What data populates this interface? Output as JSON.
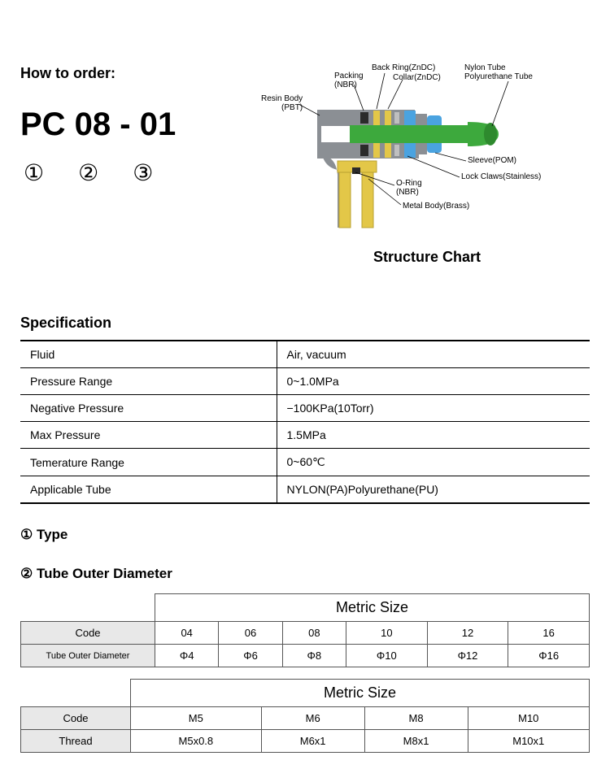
{
  "header": {
    "how_to_order": "How to order:",
    "part_number": "PC 08 - 01",
    "num1": "①",
    "num2": "②",
    "num3": "③"
  },
  "structure": {
    "caption": "Structure Chart",
    "labels": {
      "resin_body": "Resin Body\n(PBT)",
      "packing": "Packing\n(NBR)",
      "back_ring": "Back Ring(ZnDC)",
      "collar": "Collar(ZnDC)",
      "nylon_tube": "Nylon Tube\nPolyurethane Tube",
      "sleeve": "Sleeve(POM)",
      "lock_claws": "Lock Claws(Stainless)",
      "oring": "O-Ring\n(NBR)",
      "metal_body": "Metal Body(Brass)"
    },
    "colors": {
      "body_gray": "#8b8f94",
      "brass": "#e3c748",
      "tube_green": "#3da93d",
      "tube_green_dark": "#2e8a2e",
      "blue": "#4aa3e0",
      "black": "#2b2b2b"
    }
  },
  "spec": {
    "heading": "Specification",
    "rows": [
      {
        "k": "Fluid",
        "v": "Air, vacuum"
      },
      {
        "k": "Pressure Range",
        "v": "0~1.0MPa"
      },
      {
        "k": "Negative Pressure",
        "v": "−100KPa(10Torr)"
      },
      {
        "k": "Max Pressure",
        "v": "1.5MPa"
      },
      {
        "k": "Temerature Range",
        "v": "0~60℃"
      },
      {
        "k": "Applicable Tube",
        "v": "NYLON(PA)Polyurethane(PU)"
      }
    ]
  },
  "sections": {
    "type": "①  Type",
    "tube_od": "②  Tube Outer Diameter"
  },
  "table1": {
    "header": "Metric Size",
    "row_code_label": "Code",
    "row_od_label": "Tube Outer Diameter",
    "codes": [
      "04",
      "06",
      "08",
      "10",
      "12",
      "16"
    ],
    "ods": [
      "Φ4",
      "Φ6",
      "Φ8",
      "Φ10",
      "Φ12",
      "Φ16"
    ]
  },
  "table2": {
    "header": "Metric Size",
    "row_code_label": "Code",
    "row_thread_label": "Thread",
    "codes": [
      "M5",
      "M6",
      "M8",
      "M10"
    ],
    "threads": [
      "M5x0.8",
      "M6x1",
      "M8x1",
      "M10x1"
    ]
  }
}
